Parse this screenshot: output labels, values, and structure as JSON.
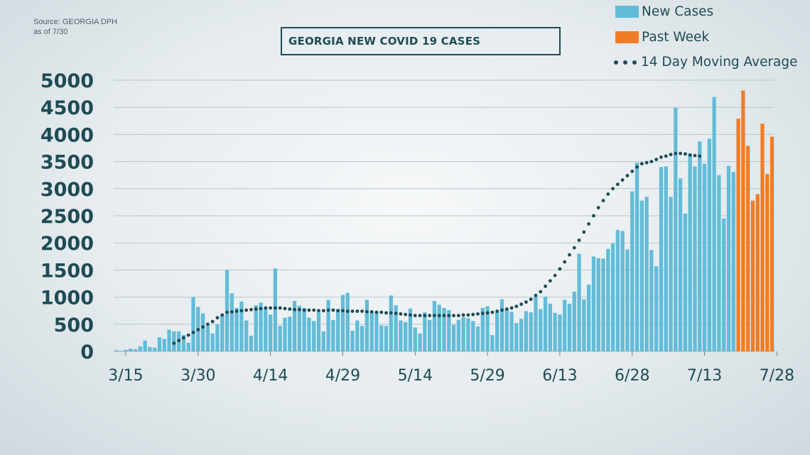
{
  "source": {
    "line1": "Source: GEORGIA DPH",
    "line2": "as of 7/30"
  },
  "legend": {
    "new_cases": "New Cases",
    "past_week": "Past Week",
    "moving_average": "14 Day Moving Average"
  },
  "colors": {
    "new_cases": "#62bcd8",
    "past_week": "#f07d26",
    "moving_average": "#1f4b55",
    "text": "#1f4b55"
  },
  "chart_data": {
    "type": "bar",
    "title": "GEORGIA NEW COVID 19 CASES",
    "ylim": [
      0,
      5000
    ],
    "yticks": [
      0,
      500,
      1000,
      1500,
      2000,
      2500,
      3000,
      3500,
      4000,
      4500,
      5000
    ],
    "xticks": [
      "3/15",
      "3/30",
      "4/14",
      "4/29",
      "5/14",
      "5/29",
      "6/13",
      "6/28",
      "7/13",
      "7/28"
    ],
    "grid": true,
    "legend_position": "top-right",
    "start_date": "3/13",
    "series": [
      {
        "name": "New Cases",
        "values": [
          20,
          10,
          30,
          50,
          40,
          90,
          200,
          80,
          70,
          260,
          230,
          400,
          370,
          370,
          300,
          160,
          1000,
          820,
          700,
          470,
          330,
          500,
          670,
          1500,
          1070,
          800,
          920,
          570,
          290,
          850,
          900,
          780,
          680,
          1530,
          470,
          620,
          640,
          930,
          840,
          800,
          620,
          560,
          720,
          370,
          950,
          580,
          780,
          1040,
          1080,
          380,
          570,
          470,
          950,
          720,
          710,
          480,
          470,
          1030,
          850,
          570,
          540,
          790,
          440,
          330,
          720,
          580,
          930,
          860,
          800,
          760,
          490,
          580,
          630,
          610,
          560,
          460,
          800,
          830,
          300,
          720,
          960,
          770,
          730,
          520,
          600,
          740,
          720,
          1000,
          780,
          1010,
          880,
          710,
          680,
          950,
          880,
          1100,
          1800,
          960,
          1230,
          1750,
          1720,
          1710,
          1890,
          1990,
          2240,
          2220,
          1880,
          2950,
          3480,
          2780,
          2850,
          1870,
          1570,
          3400,
          3410,
          2850,
          4490,
          3190,
          2540,
          3650,
          3410,
          3870,
          3460,
          3920,
          4690,
          3250,
          2450,
          3420,
          3310
        ]
      },
      {
        "name": "Past Week",
        "values": [
          4290,
          4810,
          3790,
          2780,
          2900,
          4200,
          3270,
          3960
        ]
      },
      {
        "name": "14 Day Moving Average",
        "start_index": 12,
        "values": [
          150,
          200,
          250,
          300,
          350,
          400,
          450,
          500,
          550,
          620,
          670,
          720,
          730,
          740,
          750,
          760,
          770,
          780,
          790,
          800,
          800,
          800,
          800,
          790,
          780,
          770,
          770,
          760,
          760,
          760,
          750,
          750,
          760,
          760,
          750,
          750,
          740,
          740,
          740,
          740,
          730,
          730,
          720,
          720,
          710,
          710,
          700,
          690,
          680,
          670,
          660,
          660,
          660,
          660,
          660,
          660,
          660,
          660,
          660,
          660,
          670,
          670,
          680,
          690,
          700,
          710,
          720,
          740,
          760,
          780,
          800,
          830,
          870,
          910,
          960,
          1030,
          1100,
          1200,
          1300,
          1400,
          1520,
          1650,
          1780,
          1910,
          2050,
          2200,
          2350,
          2500,
          2650,
          2780,
          2900,
          3000,
          3080,
          3160,
          3240,
          3320,
          3400,
          3460,
          3480,
          3500,
          3540,
          3580,
          3600,
          3630,
          3650,
          3650,
          3640,
          3620,
          3610,
          3600
        ]
      }
    ]
  }
}
